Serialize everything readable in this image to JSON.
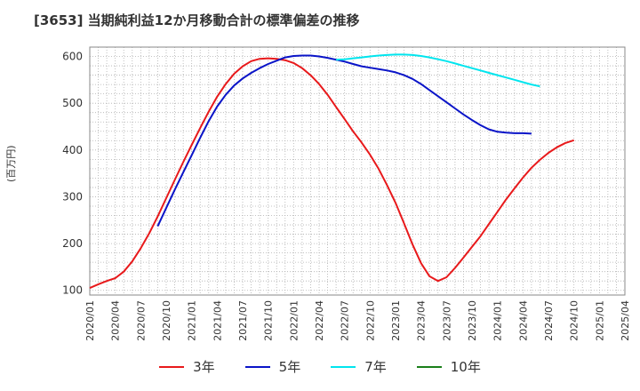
{
  "title": "[3653]  当期純利益12か月移動合計の標準偏差の推移",
  "unit_label": "(百万円)",
  "chart_data": {
    "type": "line",
    "xlabel": "",
    "ylabel": "(百万円)",
    "ylim": [
      90,
      620
    ],
    "yticks": [
      100,
      200,
      300,
      400,
      500,
      600
    ],
    "x_tick_labels": [
      "2020/01",
      "2020/04",
      "2020/07",
      "2020/10",
      "2021/01",
      "2021/04",
      "2021/07",
      "2021/10",
      "2022/01",
      "2022/04",
      "2022/07",
      "2022/10",
      "2023/01",
      "2023/04",
      "2023/07",
      "2023/10",
      "2024/01",
      "2024/04",
      "2024/07",
      "2024/10",
      "2025/01",
      "2025/04"
    ],
    "grid": true,
    "legend_position": "bottom",
    "series": [
      {
        "name": "3年",
        "color": "#e8191b",
        "points": [
          [
            "2020/01",
            105
          ],
          [
            "2020/02",
            113
          ],
          [
            "2020/03",
            120
          ],
          [
            "2020/04",
            126
          ],
          [
            "2020/05",
            140
          ],
          [
            "2020/06",
            162
          ],
          [
            "2020/07",
            190
          ],
          [
            "2020/08",
            222
          ],
          [
            "2020/09",
            258
          ],
          [
            "2020/10",
            297
          ],
          [
            "2020/11",
            336
          ],
          [
            "2020/12",
            374
          ],
          [
            "2021/01",
            411
          ],
          [
            "2021/02",
            447
          ],
          [
            "2021/03",
            482
          ],
          [
            "2021/04",
            514
          ],
          [
            "2021/05",
            541
          ],
          [
            "2021/06",
            563
          ],
          [
            "2021/07",
            579
          ],
          [
            "2021/08",
            590
          ],
          [
            "2021/09",
            595
          ],
          [
            "2021/10",
            596
          ],
          [
            "2021/11",
            595
          ],
          [
            "2021/12",
            592
          ],
          [
            "2022/01",
            586
          ],
          [
            "2022/02",
            575
          ],
          [
            "2022/03",
            560
          ],
          [
            "2022/04",
            541
          ],
          [
            "2022/05",
            518
          ],
          [
            "2022/06",
            492
          ],
          [
            "2022/07",
            466
          ],
          [
            "2022/08",
            440
          ],
          [
            "2022/09",
            416
          ],
          [
            "2022/10",
            390
          ],
          [
            "2022/11",
            360
          ],
          [
            "2022/12",
            325
          ],
          [
            "2023/01",
            287
          ],
          [
            "2023/02",
            243
          ],
          [
            "2023/03",
            198
          ],
          [
            "2023/04",
            158
          ],
          [
            "2023/05",
            130
          ],
          [
            "2023/06",
            120
          ],
          [
            "2023/07",
            128
          ],
          [
            "2023/08",
            148
          ],
          [
            "2023/09",
            170
          ],
          [
            "2023/10",
            193
          ],
          [
            "2023/11",
            216
          ],
          [
            "2023/12",
            242
          ],
          [
            "2024/01",
            268
          ],
          [
            "2024/02",
            294
          ],
          [
            "2024/03",
            318
          ],
          [
            "2024/04",
            341
          ],
          [
            "2024/05",
            362
          ],
          [
            "2024/06",
            379
          ],
          [
            "2024/07",
            394
          ],
          [
            "2024/08",
            406
          ],
          [
            "2024/09",
            415
          ],
          [
            "2024/10",
            421
          ]
        ]
      },
      {
        "name": "5年",
        "color": "#0a14c8",
        "points": [
          [
            "2020/09",
            237
          ],
          [
            "2020/10",
            276
          ],
          [
            "2020/11",
            315
          ],
          [
            "2020/12",
            352
          ],
          [
            "2021/01",
            389
          ],
          [
            "2021/02",
            426
          ],
          [
            "2021/03",
            462
          ],
          [
            "2021/04",
            493
          ],
          [
            "2021/05",
            518
          ],
          [
            "2021/06",
            538
          ],
          [
            "2021/07",
            553
          ],
          [
            "2021/08",
            565
          ],
          [
            "2021/09",
            575
          ],
          [
            "2021/10",
            584
          ],
          [
            "2021/11",
            591
          ],
          [
            "2021/12",
            598
          ],
          [
            "2022/01",
            601
          ],
          [
            "2022/02",
            602
          ],
          [
            "2022/03",
            602
          ],
          [
            "2022/04",
            600
          ],
          [
            "2022/05",
            597
          ],
          [
            "2022/06",
            593
          ],
          [
            "2022/07",
            589
          ],
          [
            "2022/08",
            584
          ],
          [
            "2022/09",
            579
          ],
          [
            "2022/10",
            576
          ],
          [
            "2022/11",
            573
          ],
          [
            "2022/12",
            570
          ],
          [
            "2023/01",
            566
          ],
          [
            "2023/02",
            560
          ],
          [
            "2023/03",
            552
          ],
          [
            "2023/04",
            541
          ],
          [
            "2023/05",
            528
          ],
          [
            "2023/06",
            515
          ],
          [
            "2023/07",
            502
          ],
          [
            "2023/08",
            489
          ],
          [
            "2023/09",
            476
          ],
          [
            "2023/10",
            464
          ],
          [
            "2023/11",
            453
          ],
          [
            "2023/12",
            444
          ],
          [
            "2024/01",
            439
          ],
          [
            "2024/02",
            437
          ],
          [
            "2024/03",
            436
          ],
          [
            "2024/04",
            436
          ],
          [
            "2024/05",
            435
          ]
        ]
      },
      {
        "name": "7年",
        "color": "#00e5ee",
        "points": [
          [
            "2022/06",
            593
          ],
          [
            "2022/07",
            594
          ],
          [
            "2022/08",
            596
          ],
          [
            "2022/09",
            598
          ],
          [
            "2022/10",
            600
          ],
          [
            "2022/11",
            602
          ],
          [
            "2022/12",
            603
          ],
          [
            "2023/01",
            604
          ],
          [
            "2023/02",
            604
          ],
          [
            "2023/03",
            603
          ],
          [
            "2023/04",
            601
          ],
          [
            "2023/05",
            598
          ],
          [
            "2023/06",
            594
          ],
          [
            "2023/07",
            590
          ],
          [
            "2023/08",
            585
          ],
          [
            "2023/09",
            580
          ],
          [
            "2023/10",
            575
          ],
          [
            "2023/11",
            570
          ],
          [
            "2023/12",
            565
          ],
          [
            "2024/01",
            560
          ],
          [
            "2024/02",
            555
          ],
          [
            "2024/03",
            550
          ],
          [
            "2024/04",
            545
          ],
          [
            "2024/05",
            540
          ],
          [
            "2024/06",
            536
          ]
        ]
      },
      {
        "name": "10年",
        "color": "#1a7f1a",
        "points": []
      }
    ]
  }
}
